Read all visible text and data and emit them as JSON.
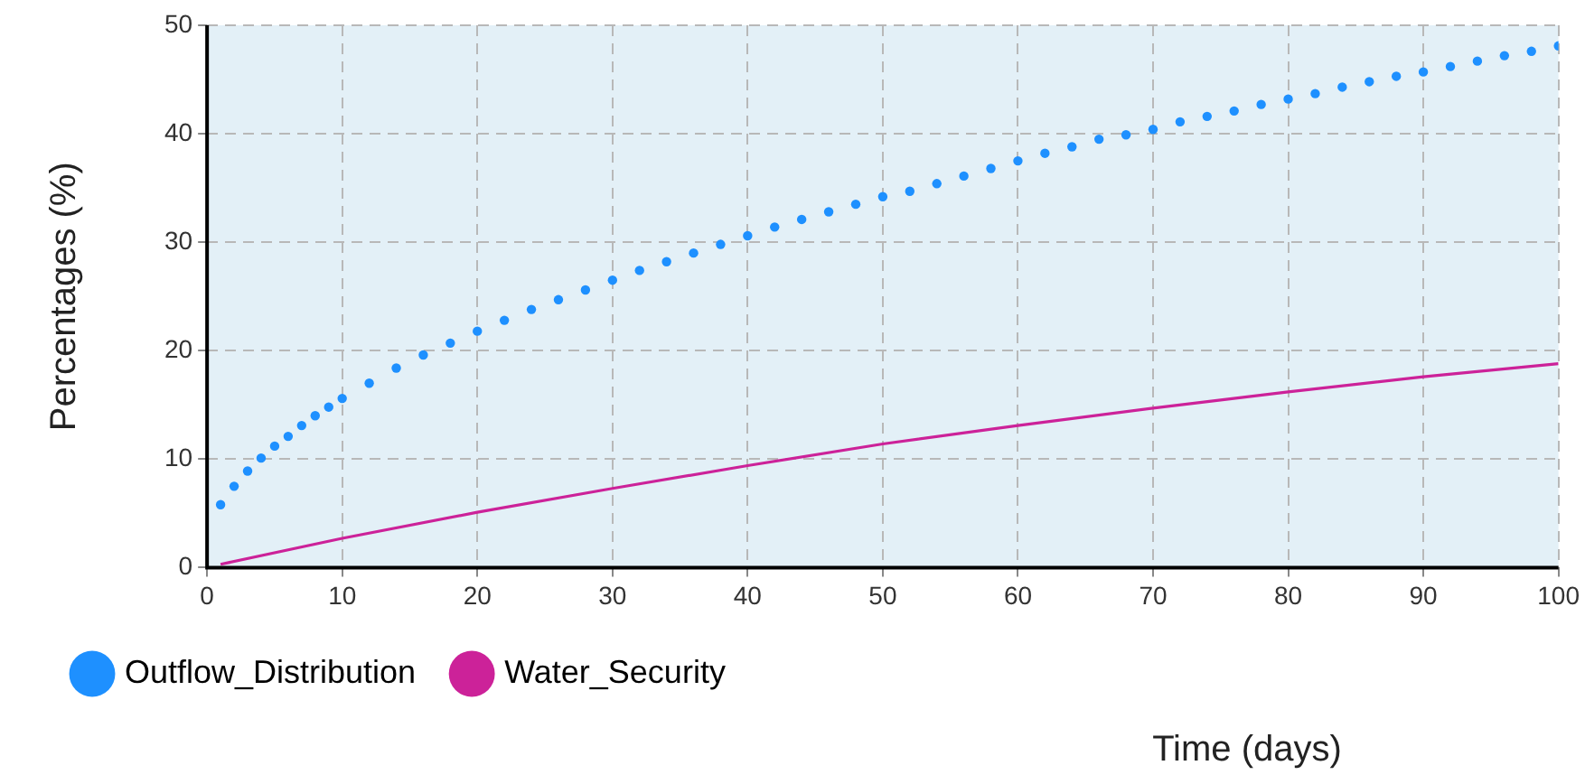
{
  "chart_data": {
    "type": "line",
    "xlabel": "Time (days)",
    "ylabel": "Percentages (%)",
    "xlim": [
      0,
      100
    ],
    "xticks": [
      0,
      10,
      20,
      30,
      40,
      50,
      60,
      70,
      80,
      90,
      100
    ],
    "ylim": [
      0,
      50
    ],
    "yticks": [
      0,
      10,
      20,
      30,
      40,
      50
    ],
    "grid": true,
    "legend": "bottom left",
    "series": [
      {
        "name": "Outflow_Distribution",
        "type": "scatter",
        "marker": "circle",
        "color": "#1e90ff",
        "x": [
          1,
          2,
          3,
          4,
          5,
          6,
          7,
          8,
          9,
          10,
          12,
          14,
          16,
          18,
          20,
          22,
          24,
          26,
          28,
          30,
          32,
          34,
          36,
          38,
          40,
          42,
          44,
          46,
          48,
          50,
          52,
          54,
          56,
          58,
          60,
          62,
          64,
          66,
          68,
          70,
          72,
          74,
          76,
          78,
          80,
          82,
          84,
          86,
          88,
          90,
          92,
          94,
          96,
          98,
          100
        ],
        "values": [
          5.8,
          7.5,
          8.9,
          10.1,
          11.2,
          12.1,
          13.1,
          14.0,
          14.8,
          15.6,
          17.0,
          18.4,
          19.6,
          20.7,
          21.8,
          22.8,
          23.8,
          24.7,
          25.6,
          26.5,
          27.4,
          28.2,
          29.0,
          29.8,
          30.6,
          31.4,
          32.1,
          32.8,
          33.5,
          34.2,
          34.7,
          35.4,
          36.1,
          36.8,
          37.5,
          38.2,
          38.8,
          39.5,
          39.9,
          40.4,
          41.1,
          41.6,
          42.1,
          42.7,
          43.2,
          43.7,
          44.3,
          44.8,
          45.3,
          45.7,
          46.2,
          46.7,
          47.2,
          47.6,
          48.1
        ]
      },
      {
        "name": "Water_Security",
        "type": "line",
        "marker": "none",
        "line_style": "solid",
        "color": "#cc2299",
        "x": [
          1,
          10,
          20,
          30,
          40,
          50,
          60,
          70,
          80,
          90,
          100
        ],
        "values": [
          0.3,
          2.7,
          5.1,
          7.3,
          9.4,
          11.4,
          13.1,
          14.7,
          16.2,
          17.6,
          18.8
        ]
      }
    ]
  }
}
